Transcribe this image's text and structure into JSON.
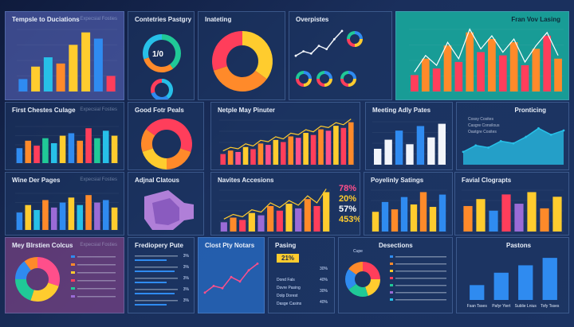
{
  "panels": {
    "p1": {
      "title": "Tempsle to Duciations",
      "sub": "Expecsial Fosties"
    },
    "p2": {
      "title": "Contetries Pastgry",
      "gauge_label": "1/0"
    },
    "p3": {
      "title": "Inateting"
    },
    "p4": {
      "title": "Overpistes"
    },
    "p5": {
      "title": "Fran Vov Lasing"
    },
    "p6": {
      "title": "First Chestes Culage",
      "sub": "Expecsial Fosties"
    },
    "p7": {
      "title": "Good Fotr Peals"
    },
    "p8": {
      "title": "Netple May Pinuter"
    },
    "p9": {
      "title": "Meeting Adly Pates"
    },
    "p10": {
      "title": "Pronticing",
      "legend": [
        "Cossy Cosites",
        "Casgre Consilous",
        "Oastgre Cosites"
      ]
    },
    "p11": {
      "title": "Wine Der Pages",
      "sub": "Expecsial Fosties"
    },
    "p12": {
      "title": "Adjnal Clatous"
    },
    "p13": {
      "title": "Navites Accesions"
    },
    "p14": {
      "title": "Poyelinly Satings"
    },
    "p15": {
      "title": "Favial Clograpts"
    },
    "p16": {
      "title": "Mey Blrstien Colcus",
      "sub": "Expecsial Fosties"
    },
    "p17": {
      "title": "Frediopery Pute"
    },
    "p18": {
      "title": "Clost Pty Notars"
    },
    "p19": {
      "title": "Pasing",
      "highlight": "21%"
    },
    "p20": {
      "title": "Desections",
      "legend_title": "Cupe"
    },
    "p21": {
      "title": "Pastons"
    }
  },
  "percent_stats": [
    "78%",
    "20%",
    "57%",
    "453%"
  ],
  "list_values": [
    "3%",
    "3%",
    "3%",
    "3%",
    "3%"
  ],
  "pasing_rows": [
    "Dond Fals",
    "Dsvre Pasing",
    "Dolp Dorest",
    "Dasge Casins"
  ],
  "pasing_values": [
    "30%",
    "40%",
    "30%",
    "40%"
  ],
  "p21_categories": [
    "Fsan Tsses",
    "Pafyr Yiert",
    "Sublie Lnius",
    "Tofy Tsses"
  ],
  "colors": {
    "blue": "#2f8bf0",
    "orange": "#ff8a2a",
    "yellow": "#ffcc2e",
    "red": "#ff3e5b",
    "green": "#20c997",
    "purple": "#9a6bd6",
    "cyan": "#27c0e8",
    "teal": "#17b8a6",
    "pink": "#ff4f8b",
    "white": "#f2f5fa"
  },
  "chart_data": [
    {
      "type": "bar",
      "id": "p1",
      "values": [
        20,
        40,
        55,
        45,
        75,
        95,
        85,
        25
      ]
    },
    {
      "type": "pie",
      "id": "p2",
      "values": [
        40,
        30,
        30
      ]
    },
    {
      "type": "pie",
      "id": "p3",
      "values": [
        35,
        35,
        30
      ]
    },
    {
      "type": "line",
      "id": "p4",
      "values": [
        10,
        18,
        14,
        28,
        22,
        40,
        55
      ]
    },
    {
      "type": "bar",
      "id": "p5",
      "values": [
        25,
        50,
        35,
        70,
        45,
        90,
        60,
        80,
        55,
        75,
        40,
        65,
        85,
        50
      ]
    },
    {
      "type": "bar",
      "id": "p6",
      "values": [
        30,
        45,
        35,
        50,
        40,
        55,
        60,
        45,
        70,
        50,
        65,
        55
      ]
    },
    {
      "type": "pie",
      "id": "p7",
      "values": [
        30,
        20,
        20,
        15,
        15
      ]
    },
    {
      "type": "bar",
      "id": "p8",
      "values": [
        15,
        20,
        18,
        25,
        22,
        30,
        28,
        35,
        32,
        40,
        38,
        45,
        42,
        50,
        48,
        55,
        52,
        60
      ]
    },
    {
      "type": "bar",
      "id": "p9",
      "values": [
        35,
        55,
        75,
        45,
        85,
        60,
        90
      ]
    },
    {
      "type": "area",
      "id": "p10",
      "values": [
        30,
        45,
        40,
        55,
        50,
        65,
        85,
        70,
        80
      ]
    },
    {
      "type": "bar",
      "id": "p11",
      "values": [
        35,
        50,
        40,
        60,
        45,
        55,
        65,
        50,
        70,
        55,
        60,
        45
      ]
    },
    {
      "type": "bar",
      "id": "p13",
      "values": [
        20,
        30,
        25,
        40,
        35,
        55,
        45,
        60,
        50,
        70,
        55,
        85
      ]
    },
    {
      "type": "bar",
      "id": "p14",
      "values": [
        40,
        60,
        45,
        70,
        55,
        80,
        50,
        75
      ]
    },
    {
      "type": "bar",
      "id": "p15",
      "values": [
        55,
        70,
        45,
        80,
        60,
        85,
        50,
        75
      ]
    },
    {
      "type": "pie",
      "id": "p16",
      "values": [
        30,
        25,
        20,
        15,
        10
      ]
    },
    {
      "type": "line",
      "id": "p18",
      "values": [
        20,
        35,
        30,
        55,
        45,
        70,
        85
      ]
    },
    {
      "type": "pie",
      "id": "p20",
      "values": [
        25,
        20,
        20,
        20,
        15
      ]
    },
    {
      "type": "bar",
      "id": "p21",
      "categories": [
        "Fsan Tsses",
        "Pafyr Yiert",
        "Sublie Lnius",
        "Tofy Tsses"
      ],
      "values": [
        30,
        55,
        70,
        85
      ]
    }
  ]
}
